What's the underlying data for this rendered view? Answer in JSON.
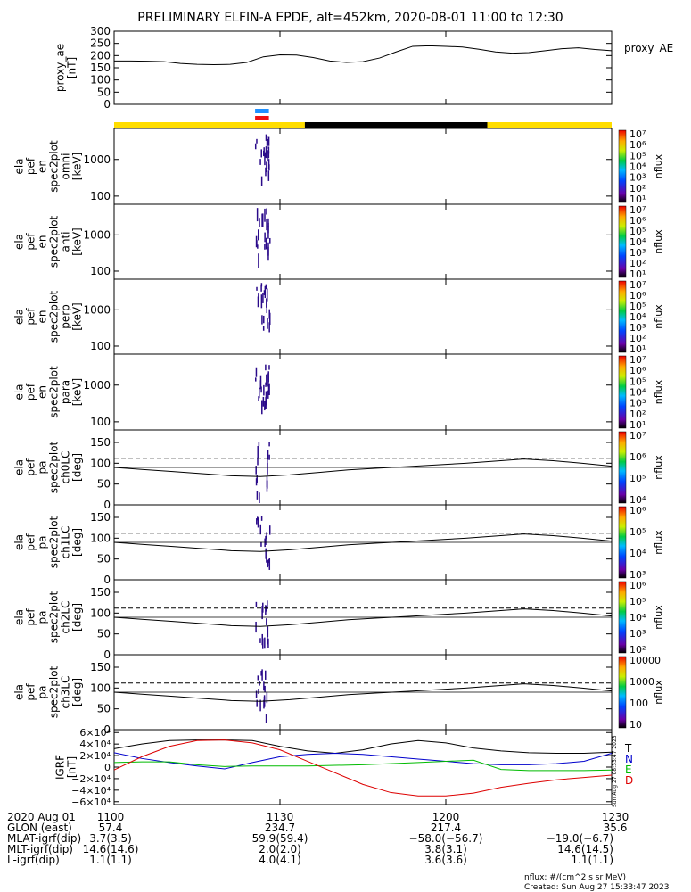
{
  "title": "PRELIMINARY ELFIN-A EPDE, alt=452km, 2020-08-01 11:00 to 12:30",
  "proxy_label": "proxy_AE",
  "chart_data": [
    {
      "type": "line",
      "id": "proxy_ae",
      "ylabel": [
        "proxy_ae",
        "[nT]"
      ],
      "ylim": [
        0,
        300
      ],
      "yticks": [
        "0",
        "50",
        "100",
        "150",
        "200",
        "250",
        "300"
      ],
      "series": [
        {
          "x": [
            0,
            3,
            6,
            9,
            12,
            15,
            18,
            21,
            24,
            27,
            30,
            33,
            36,
            39,
            42,
            45,
            48,
            51,
            54,
            57,
            60,
            63,
            66,
            69,
            72,
            75,
            78,
            81,
            84,
            87,
            90
          ],
          "y": [
            178,
            178,
            177,
            175,
            168,
            164,
            163,
            164,
            172,
            195,
            203,
            202,
            192,
            178,
            172,
            175,
            190,
            215,
            238,
            240,
            238,
            235,
            226,
            215,
            210,
            212,
            220,
            228,
            232,
            225,
            220
          ]
        }
      ]
    },
    {
      "type": "heatmap",
      "id": "omni",
      "ylabel": [
        "ela",
        "pef",
        "en",
        "spec2plot",
        "omni",
        "[keV]"
      ],
      "ylog": [
        60,
        7000
      ],
      "yticks": [
        "100",
        "1000"
      ],
      "cbar": [
        "10¹",
        "10²",
        "10³",
        "10⁴",
        "10⁵",
        "10⁶",
        "10⁷"
      ],
      "cbar_label": "nflux"
    },
    {
      "type": "heatmap",
      "id": "anti",
      "ylabel": [
        "ela",
        "pef",
        "en",
        "spec2plot",
        "anti",
        "[keV]"
      ],
      "ylog": [
        60,
        7000
      ],
      "yticks": [
        "100",
        "1000"
      ],
      "cbar": [
        "10¹",
        "10²",
        "10³",
        "10⁴",
        "10⁵",
        "10⁶",
        "10⁷"
      ],
      "cbar_label": "nflux"
    },
    {
      "type": "heatmap",
      "id": "perp",
      "ylabel": [
        "ela",
        "pef",
        "en",
        "spec2plot",
        "perp",
        "[keV]"
      ],
      "ylog": [
        60,
        7000
      ],
      "yticks": [
        "100",
        "1000"
      ],
      "cbar": [
        "10¹",
        "10²",
        "10³",
        "10⁴",
        "10⁵",
        "10⁶",
        "10⁷"
      ],
      "cbar_label": "nflux"
    },
    {
      "type": "heatmap",
      "id": "para",
      "ylabel": [
        "ela",
        "pef",
        "en",
        "spec2plot",
        "para",
        "[keV]"
      ],
      "ylog": [
        60,
        7000
      ],
      "yticks": [
        "100",
        "1000"
      ],
      "cbar": [
        "10¹",
        "10²",
        "10³",
        "10⁴",
        "10⁵",
        "10⁶",
        "10⁷"
      ],
      "cbar_label": "nflux"
    },
    {
      "type": "heatmap",
      "id": "ch0LC",
      "ylabel": [
        "ela",
        "pef",
        "pa",
        "spec2plot",
        "ch0LC",
        "[deg]"
      ],
      "ylim": [
        0,
        180
      ],
      "yticks": [
        "0",
        "50",
        "100",
        "150"
      ],
      "cbar": [
        "10⁴",
        "10⁵",
        "10⁶",
        "10⁷"
      ],
      "cbar_label": "nflux",
      "lc_solid": [
        90,
        85,
        80,
        75,
        70,
        68,
        72,
        78,
        84,
        88,
        92,
        96,
        100,
        105,
        110,
        106,
        100,
        93
      ],
      "lc_dashed": 112
    },
    {
      "type": "heatmap",
      "id": "ch1LC",
      "ylabel": [
        "ela",
        "pef",
        "pa",
        "spec2plot",
        "ch1LC",
        "[deg]"
      ],
      "ylim": [
        0,
        180
      ],
      "yticks": [
        "0",
        "50",
        "100",
        "150"
      ],
      "cbar": [
        "10³",
        "10⁴",
        "10⁵",
        "10⁶"
      ],
      "cbar_label": "nflux",
      "lc_solid": [
        90,
        85,
        80,
        75,
        70,
        68,
        72,
        78,
        84,
        88,
        92,
        96,
        100,
        105,
        110,
        106,
        100,
        93
      ],
      "lc_dashed": 112
    },
    {
      "type": "heatmap",
      "id": "ch2LC",
      "ylabel": [
        "ela",
        "pef",
        "pa",
        "spec2plot",
        "ch2LC",
        "[deg]"
      ],
      "ylim": [
        0,
        180
      ],
      "yticks": [
        "0",
        "50",
        "100",
        "150"
      ],
      "cbar": [
        "10²",
        "10³",
        "10⁴",
        "10⁵",
        "10⁶"
      ],
      "cbar_label": "nflux",
      "lc_solid": [
        90,
        85,
        80,
        75,
        70,
        68,
        72,
        78,
        84,
        88,
        92,
        96,
        100,
        105,
        110,
        106,
        100,
        93
      ],
      "lc_dashed": 112
    },
    {
      "type": "heatmap",
      "id": "ch3LC",
      "ylabel": [
        "ela",
        "pef",
        "pa",
        "spec2plot",
        "ch3LC",
        "[deg]"
      ],
      "ylim": [
        0,
        180
      ],
      "yticks": [
        "0",
        "50",
        "100",
        "150"
      ],
      "cbar": [
        "10",
        "100",
        "1000",
        "10000"
      ],
      "cbar_label": "nflux",
      "lc_solid": [
        90,
        85,
        80,
        75,
        70,
        68,
        72,
        78,
        84,
        88,
        92,
        96,
        100,
        105,
        110,
        106,
        100,
        93
      ],
      "lc_dashed": 112
    },
    {
      "type": "line",
      "id": "igrf",
      "ylabel": [
        "IGRF",
        "[nT]"
      ],
      "ylim": [
        -65000,
        65000
      ],
      "yticks": [
        "−6×10⁴",
        "−4×10⁴",
        "−2×10⁴",
        "0",
        "2×10⁴",
        "4×10⁴",
        "6×10⁴"
      ],
      "series": [
        {
          "name": "T",
          "color": "#000000",
          "x": [
            0,
            5,
            10,
            15,
            20,
            25,
            30,
            35,
            40,
            45,
            50,
            55,
            60,
            65,
            70,
            75,
            80,
            85,
            90
          ],
          "y": [
            32000,
            40000,
            46000,
            47000,
            47000,
            46000,
            36000,
            28000,
            24000,
            30000,
            40000,
            46000,
            42000,
            33000,
            28000,
            25000,
            24000,
            24000,
            26000
          ]
        },
        {
          "name": "N",
          "color": "#0000cc",
          "x": [
            0,
            5,
            10,
            15,
            20,
            25,
            30,
            35,
            40,
            45,
            50,
            55,
            60,
            65,
            70,
            75,
            80,
            85,
            90
          ],
          "y": [
            25000,
            15000,
            8000,
            2000,
            -3000,
            8000,
            18000,
            22000,
            24000,
            22000,
            18000,
            14000,
            10000,
            6000,
            4000,
            4000,
            6000,
            10000,
            24000
          ]
        },
        {
          "name": "E",
          "color": "#00bb00",
          "x": [
            0,
            5,
            10,
            15,
            20,
            25,
            30,
            35,
            40,
            45,
            50,
            55,
            60,
            65,
            70,
            75,
            80,
            85,
            90
          ],
          "y": [
            8000,
            9000,
            9000,
            4000,
            1000,
            2000,
            2000,
            2000,
            3000,
            4000,
            6000,
            8000,
            10000,
            12000,
            -4000,
            -6000,
            -6000,
            -6000,
            -5000
          ]
        },
        {
          "name": "D",
          "color": "#dd0000",
          "x": [
            0,
            5,
            10,
            15,
            20,
            25,
            30,
            35,
            40,
            45,
            50,
            55,
            60,
            65,
            70,
            75,
            80,
            85,
            90
          ],
          "y": [
            -5000,
            18000,
            36000,
            46000,
            47000,
            42000,
            30000,
            10000,
            -10000,
            -30000,
            -44000,
            -50000,
            -50000,
            -45000,
            -35000,
            -28000,
            -22000,
            -18000,
            -14000
          ]
        }
      ]
    }
  ],
  "xaxis": {
    "ticks": [
      "1100",
      "1130",
      "1200",
      "1230"
    ],
    "tick_minutes": [
      0,
      30,
      60,
      90
    ],
    "row_labels": [
      "2020 Aug 01",
      "GLON (east)",
      "MLAT-igrf(dip)",
      "MLT-igrf(dip)",
      "L-igrf(dip)"
    ],
    "rows": [
      [
        "1100",
        "1130",
        "1200",
        "1230"
      ],
      [
        "57.4",
        "234.7",
        "217.4",
        "35.6"
      ],
      [
        "3.7(3.5)",
        "59.9(59.4)",
        "−58.0(−56.7)",
        "−19.0(−6.7)"
      ],
      [
        "14.6(14.6)",
        "2.0(2.0)",
        "3.8(3.1)",
        "14.6(14.5)"
      ],
      [
        "1.1(1.1)",
        "4.0(4.1)",
        "3.6(3.6)",
        "1.1(1.1)"
      ]
    ]
  },
  "bars": {
    "sunlit": [
      [
        0,
        34.5
      ],
      [
        67.5,
        90
      ]
    ],
    "eclipse": [
      [
        34.5,
        67.5
      ]
    ],
    "science_blue": [
      25.5,
      28
    ],
    "science_red": [
      25.5,
      28
    ]
  },
  "side_note": "Sun Aug 27 08:33:47 2023",
  "footer": [
    "nflux: #/(cm^2 s sr MeV)",
    "Created: Sun Aug 27 15:33:47 2023"
  ],
  "colors": {
    "sunlit": "#ffdd00",
    "eclipse": "#000000",
    "blue": "#1e90ff",
    "red": "#ee1111",
    "spec": "#2a0a8a"
  }
}
